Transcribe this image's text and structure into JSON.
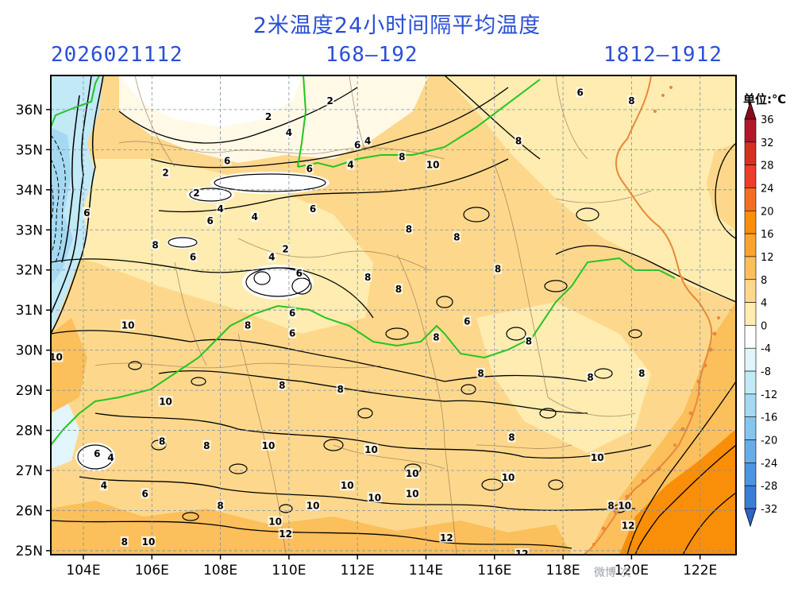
{
  "header": {
    "title": "2米温度24小时间隔平均温度",
    "init_time": "2026021112",
    "forecast_hours": "168—192",
    "valid_period": "1812—1912"
  },
  "map": {
    "lat_labels": [
      "36N",
      "35N",
      "34N",
      "33N",
      "32N",
      "31N",
      "30N",
      "29N",
      "28N",
      "27N",
      "26N",
      "25N"
    ],
    "lon_labels": [
      "104E",
      "106E",
      "108E",
      "110E",
      "112E",
      "114E",
      "116E",
      "118E",
      "120E",
      "122E"
    ],
    "lat_range": [
      24.9,
      36.85
    ],
    "lon_range": [
      103.05,
      123.05
    ],
    "contour_labels": [
      {
        "text": "2",
        "lon": 107.3,
        "lat": 33.9
      },
      {
        "text": "2",
        "lon": 109.4,
        "lat": 35.8
      },
      {
        "text": "2",
        "lon": 111.2,
        "lat": 36.2
      },
      {
        "text": "2",
        "lon": 106.4,
        "lat": 34.4
      },
      {
        "text": "2",
        "lon": 109.9,
        "lat": 32.5
      },
      {
        "text": "4",
        "lon": 109.0,
        "lat": 33.3
      },
      {
        "text": "4",
        "lon": 110.0,
        "lat": 35.4
      },
      {
        "text": "4",
        "lon": 111.8,
        "lat": 34.6
      },
      {
        "text": "4",
        "lon": 112.3,
        "lat": 35.2
      },
      {
        "text": "4",
        "lon": 108.0,
        "lat": 33.5
      },
      {
        "text": "4",
        "lon": 109.5,
        "lat": 32.3
      },
      {
        "text": "4",
        "lon": 104.8,
        "lat": 27.3
      },
      {
        "text": "4",
        "lon": 104.6,
        "lat": 26.6
      },
      {
        "text": "6",
        "lon": 108.2,
        "lat": 34.7
      },
      {
        "text": "6",
        "lon": 107.7,
        "lat": 33.2
      },
      {
        "text": "6",
        "lon": 110.6,
        "lat": 34.5
      },
      {
        "text": "6",
        "lon": 110.7,
        "lat": 33.5
      },
      {
        "text": "6",
        "lon": 112.0,
        "lat": 35.1
      },
      {
        "text": "6",
        "lon": 110.1,
        "lat": 30.9
      },
      {
        "text": "6",
        "lon": 110.1,
        "lat": 30.4
      },
      {
        "text": "6",
        "lon": 107.2,
        "lat": 32.3
      },
      {
        "text": "6",
        "lon": 110.3,
        "lat": 31.9
      },
      {
        "text": "6",
        "lon": 115.2,
        "lat": 30.7
      },
      {
        "text": "6",
        "lon": 105.8,
        "lat": 26.4
      },
      {
        "text": "6",
        "lon": 104.4,
        "lat": 27.4
      },
      {
        "text": "6",
        "lon": 104.1,
        "lat": 33.4
      },
      {
        "text": "8",
        "lon": 106.1,
        "lat": 32.6
      },
      {
        "text": "8",
        "lon": 113.5,
        "lat": 33.0
      },
      {
        "text": "8",
        "lon": 113.3,
        "lat": 34.8
      },
      {
        "text": "8",
        "lon": 114.9,
        "lat": 32.8
      },
      {
        "text": "8",
        "lon": 116.1,
        "lat": 32.0
      },
      {
        "text": "8",
        "lon": 112.3,
        "lat": 31.8
      },
      {
        "text": "8",
        "lon": 113.2,
        "lat": 31.5
      },
      {
        "text": "8",
        "lon": 114.3,
        "lat": 30.3
      },
      {
        "text": "8",
        "lon": 115.6,
        "lat": 29.4
      },
      {
        "text": "8",
        "lon": 108.8,
        "lat": 30.6
      },
      {
        "text": "8",
        "lon": 109.8,
        "lat": 29.1
      },
      {
        "text": "8",
        "lon": 111.5,
        "lat": 29.0
      },
      {
        "text": "8",
        "lon": 107.6,
        "lat": 27.6
      },
      {
        "text": "8",
        "lon": 106.3,
        "lat": 27.7
      },
      {
        "text": "8",
        "lon": 117.0,
        "lat": 30.2
      },
      {
        "text": "8",
        "lon": 118.8,
        "lat": 29.3
      },
      {
        "text": "8",
        "lon": 120.3,
        "lat": 29.4
      },
      {
        "text": "8",
        "lon": 108.0,
        "lat": 26.1
      },
      {
        "text": "8",
        "lon": 105.2,
        "lat": 25.2
      },
      {
        "text": "8",
        "lon": 119.4,
        "lat": 26.1
      },
      {
        "text": "8",
        "lon": 116.7,
        "lat": 35.2
      },
      {
        "text": "8",
        "lon": 120.0,
        "lat": 36.2
      },
      {
        "text": "8",
        "lon": 116.5,
        "lat": 27.8
      },
      {
        "text": "6",
        "lon": 118.5,
        "lat": 36.4
      },
      {
        "text": "10",
        "lon": 105.3,
        "lat": 30.6
      },
      {
        "text": "10",
        "lon": 103.2,
        "lat": 29.8
      },
      {
        "text": "10",
        "lon": 106.4,
        "lat": 28.7
      },
      {
        "text": "10",
        "lon": 109.4,
        "lat": 27.6
      },
      {
        "text": "10",
        "lon": 111.7,
        "lat": 26.6
      },
      {
        "text": "10",
        "lon": 112.5,
        "lat": 26.3
      },
      {
        "text": "10",
        "lon": 112.4,
        "lat": 27.5
      },
      {
        "text": "10",
        "lon": 113.6,
        "lat": 26.9
      },
      {
        "text": "10",
        "lon": 113.6,
        "lat": 26.4
      },
      {
        "text": "10",
        "lon": 110.7,
        "lat": 26.1
      },
      {
        "text": "10",
        "lon": 109.6,
        "lat": 25.7
      },
      {
        "text": "10",
        "lon": 105.9,
        "lat": 25.2
      },
      {
        "text": "10",
        "lon": 114.2,
        "lat": 34.6
      },
      {
        "text": "10",
        "lon": 116.4,
        "lat": 26.8
      },
      {
        "text": "10",
        "lon": 119.0,
        "lat": 27.3
      },
      {
        "text": "10",
        "lon": 119.8,
        "lat": 26.1
      },
      {
        "text": "12",
        "lon": 109.9,
        "lat": 25.4
      },
      {
        "text": "12",
        "lon": 114.6,
        "lat": 25.3
      },
      {
        "text": "12",
        "lon": 119.9,
        "lat": 25.6
      },
      {
        "text": "12",
        "lon": 116.8,
        "lat": 24.9
      }
    ]
  },
  "colorbar": {
    "unit_label": "单位:℃",
    "ticks": [
      "36",
      "32",
      "28",
      "24",
      "20",
      "16",
      "12",
      "8",
      "4",
      "0",
      "-4",
      "-8",
      "-12",
      "-16",
      "-20",
      "-24",
      "-28",
      "-32"
    ],
    "colors": [
      "#b2182b",
      "#d7301f",
      "#ef3b2c",
      "#f46d25",
      "#f98e09",
      "#fba331",
      "#fbbf5c",
      "#fdd88c",
      "#feecb0",
      "#ffffff",
      "#e1f5fb",
      "#c2e9f6",
      "#a5d9f2",
      "#86c5ee",
      "#67aee9",
      "#4c95e0",
      "#3a7dd4",
      "#2c65c6"
    ]
  },
  "watermark": {
    "text": "微博 次"
  }
}
